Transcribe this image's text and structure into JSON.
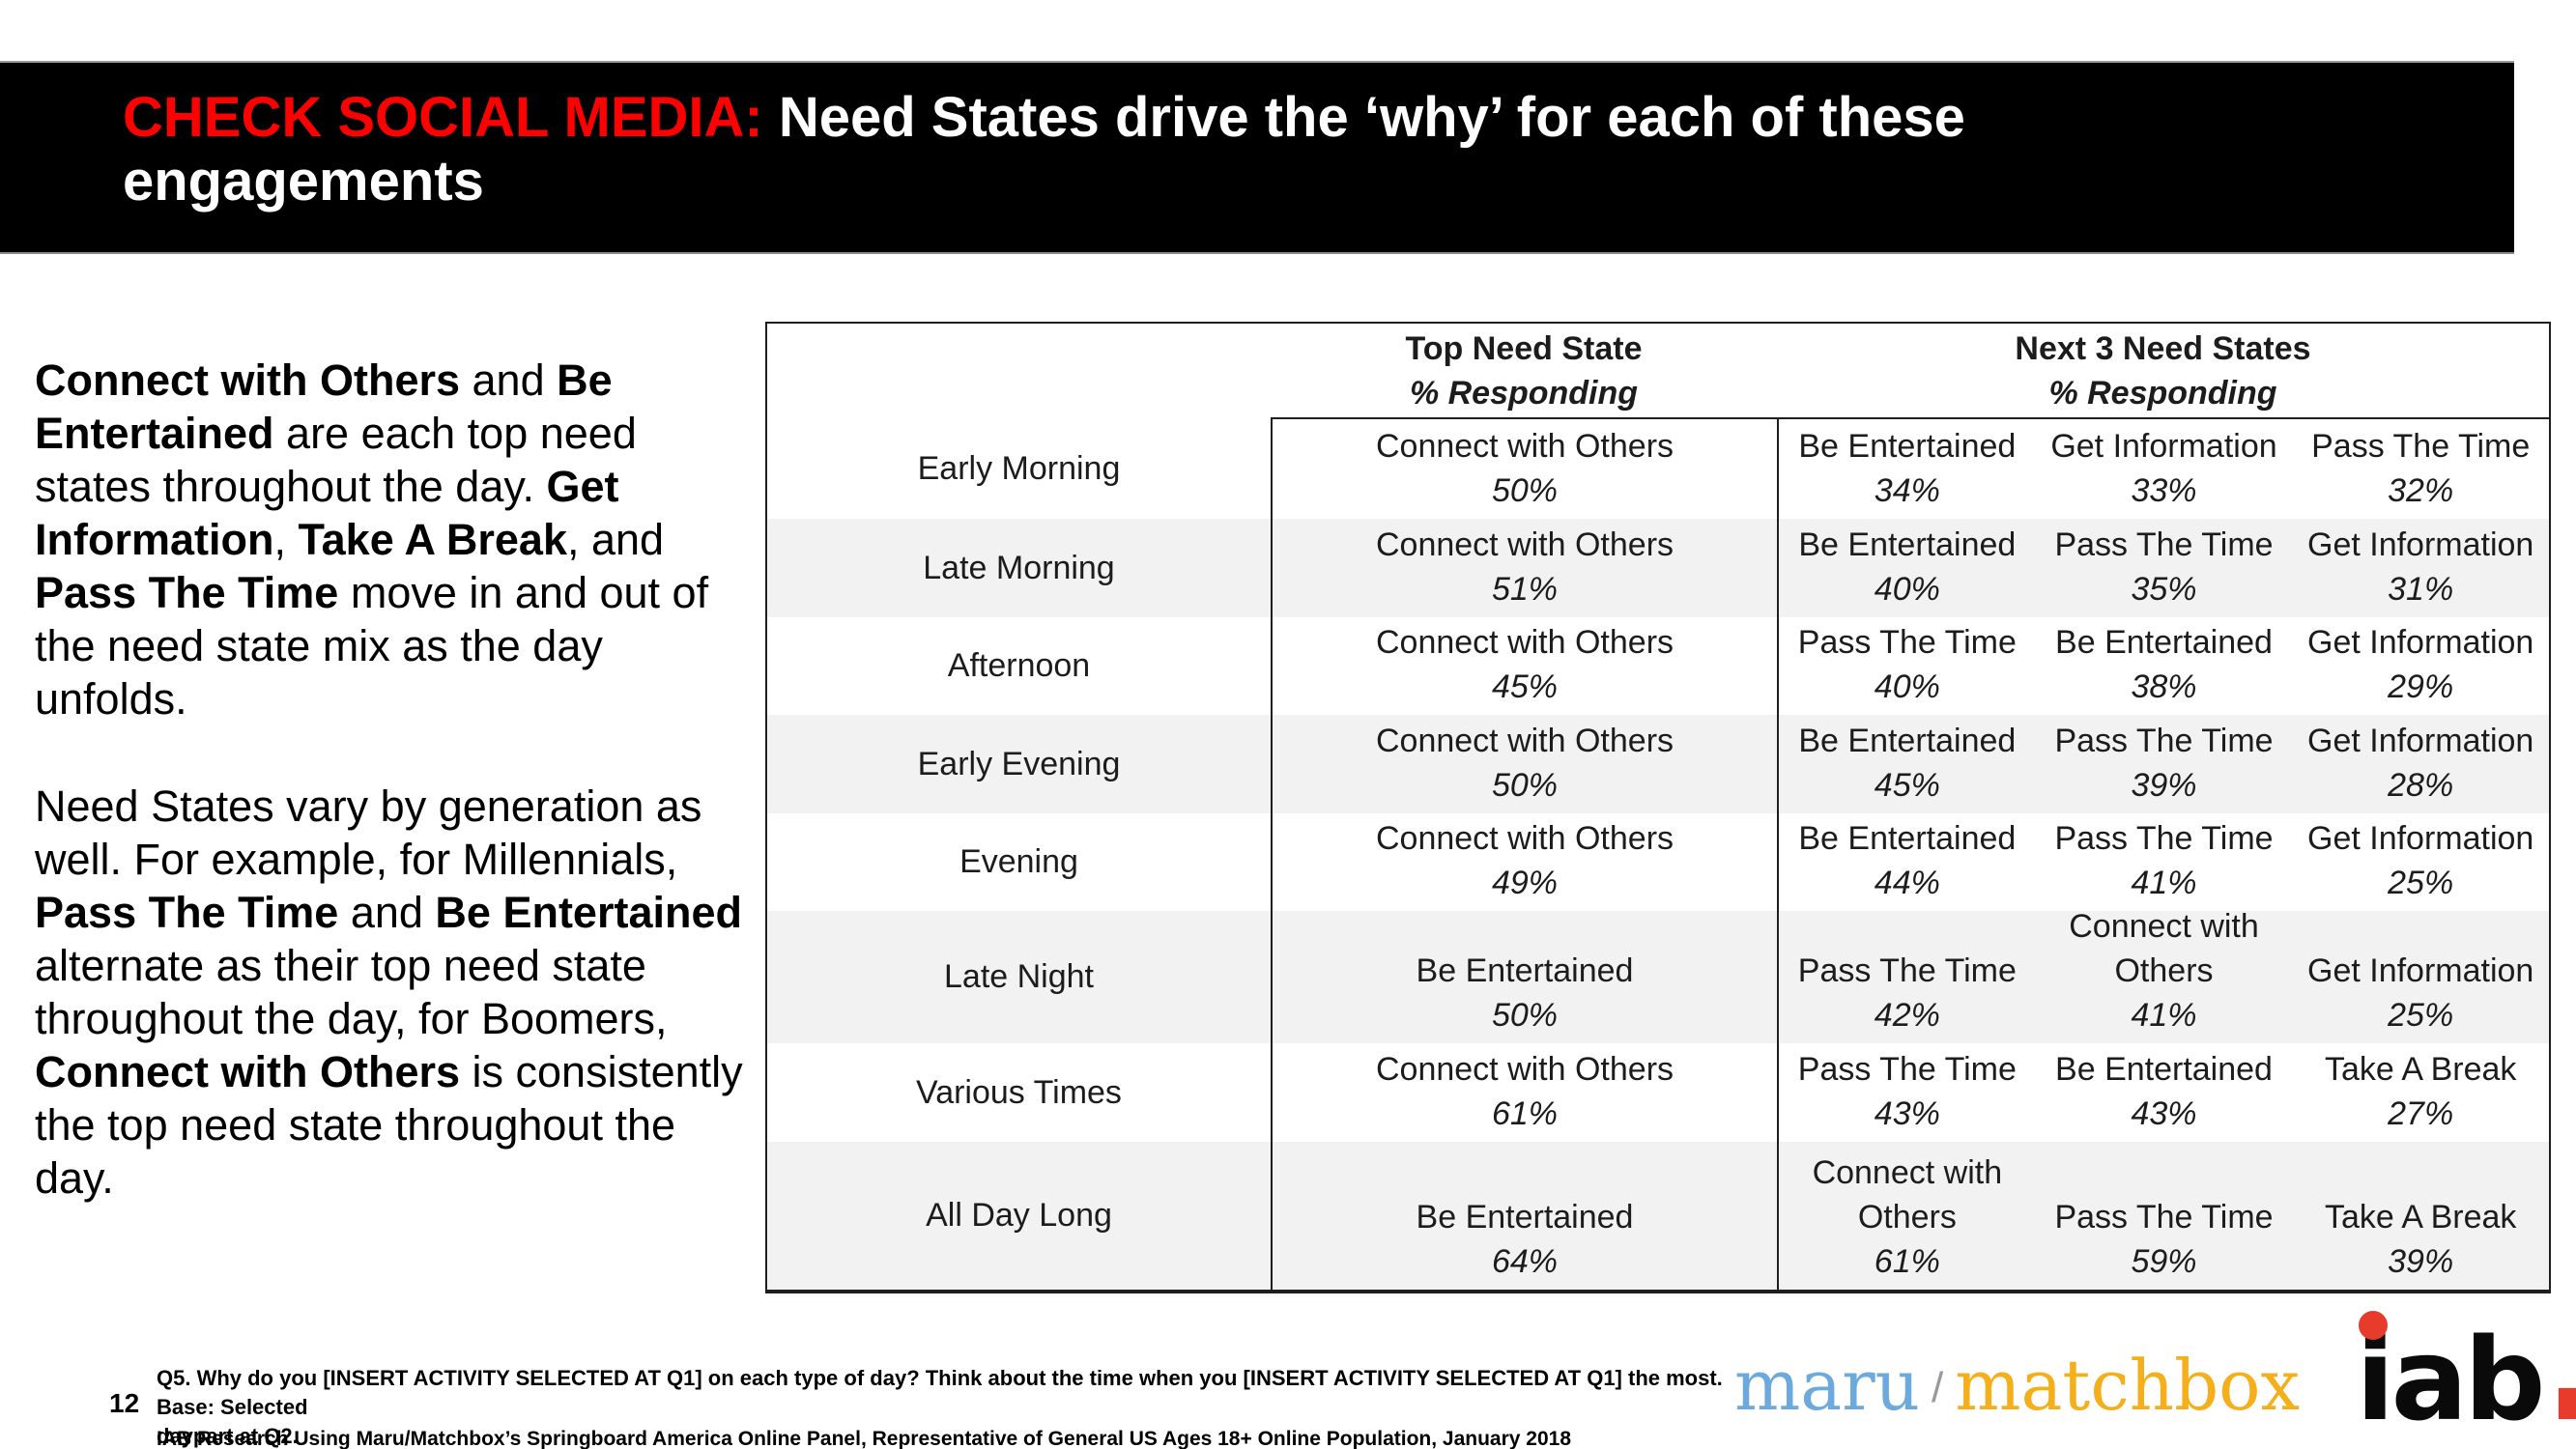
{
  "header": {
    "title_red": "CHECK SOCIAL MEDIA:",
    "title_rest": " Need States drive the ‘why’ for each of these",
    "title_line2": "engagements"
  },
  "left_text": {
    "paragraphs": [
      {
        "segments": [
          {
            "t": "Connect with Others",
            "b": true
          },
          {
            "t": " and ",
            "b": false
          },
          {
            "t": "Be Entertained",
            "b": true
          },
          {
            "t": " are each top need states throughout the day. ",
            "b": false
          },
          {
            "t": "Get Information",
            "b": true
          },
          {
            "t": ", ",
            "b": false
          },
          {
            "t": "Take A Break",
            "b": true
          },
          {
            "t": ", and ",
            "b": false
          },
          {
            "t": "Pass The Time",
            "b": true
          },
          {
            "t": " move in and out of the need state mix as the day unfolds.",
            "b": false
          }
        ]
      },
      {
        "segments": [
          {
            "t": "Need States vary by generation as well. For example, for Millennials, ",
            "b": false
          },
          {
            "t": "Pass The Time",
            "b": true
          },
          {
            "t": " and ",
            "b": false
          },
          {
            "t": "Be Entertained",
            "b": true
          },
          {
            "t": " alternate as their top need state throughout the day, for Boomers, ",
            "b": false
          },
          {
            "t": "Connect with Others",
            "b": true
          },
          {
            "t": " is consistently the top need state throughout the day.",
            "b": false
          }
        ]
      }
    ]
  },
  "table": {
    "headers": {
      "top": {
        "title": "Top Need State",
        "sub": "% Responding"
      },
      "next": {
        "title": "Next 3 Need States",
        "sub": "% Responding"
      }
    },
    "rows": [
      {
        "daypart": "Early Morning",
        "top": {
          "label": "Connect with Others",
          "pct": "50%"
        },
        "next": [
          {
            "label": "Be Entertained",
            "pct": "34%"
          },
          {
            "label": "Get Information",
            "pct": "33%"
          },
          {
            "label": "Pass The Time",
            "pct": "32%"
          }
        ]
      },
      {
        "daypart": "Late Morning",
        "top": {
          "label": "Connect with Others",
          "pct": "51%"
        },
        "next": [
          {
            "label": "Be Entertained",
            "pct": "40%"
          },
          {
            "label": "Pass The Time",
            "pct": "35%"
          },
          {
            "label": "Get Information",
            "pct": "31%"
          }
        ]
      },
      {
        "daypart": "Afternoon",
        "top": {
          "label": "Connect with Others",
          "pct": "45%"
        },
        "next": [
          {
            "label": "Pass The Time",
            "pct": "40%"
          },
          {
            "label": "Be Entertained",
            "pct": "38%"
          },
          {
            "label": "Get Information",
            "pct": "29%"
          }
        ]
      },
      {
        "daypart": "Early Evening",
        "top": {
          "label": "Connect with Others",
          "pct": "50%"
        },
        "next": [
          {
            "label": "Be Entertained",
            "pct": "45%"
          },
          {
            "label": "Pass The Time",
            "pct": "39%"
          },
          {
            "label": "Get Information",
            "pct": "28%"
          }
        ]
      },
      {
        "daypart": "Evening",
        "top": {
          "label": "Connect with Others",
          "pct": "49%"
        },
        "next": [
          {
            "label": "Be Entertained",
            "pct": "44%"
          },
          {
            "label": "Pass The Time",
            "pct": "41%"
          },
          {
            "label": "Get Information",
            "pct": "25%"
          }
        ]
      },
      {
        "daypart": "Late Night",
        "top": {
          "label": "Be Entertained",
          "pct": "50%"
        },
        "next": [
          {
            "label": "Pass The Time",
            "pct": "42%"
          },
          {
            "label": "Connect with Others",
            "pct": "41%"
          },
          {
            "label": "Get Information",
            "pct": "25%"
          }
        ]
      },
      {
        "daypart": "Various Times",
        "top": {
          "label": "Connect with Others",
          "pct": "61%"
        },
        "next": [
          {
            "label": "Pass The Time",
            "pct": "43%"
          },
          {
            "label": "Be Entertained",
            "pct": "43%"
          },
          {
            "label": "Take A Break",
            "pct": "27%"
          }
        ]
      },
      {
        "daypart": "All Day Long",
        "top": {
          "label": "Be Entertained",
          "pct": "64%"
        },
        "next": [
          {
            "label": "Connect with Others",
            "pct": "61%"
          },
          {
            "label": "Pass The Time",
            "pct": "59%"
          },
          {
            "label": "Take A Break",
            "pct": "39%"
          }
        ]
      }
    ]
  },
  "footer": {
    "page_number": "12",
    "footnote_line1": "Q5. Why do you [INSERT ACTIVITY SELECTED AT Q1] on each type of day? Think about the time when you [INSERT ACTIVITY SELECTED AT Q1] the most. Base: Selected",
    "footnote_line2": "daypart at Q2.",
    "source": "IAB Research Using Maru/Matchbox’s Springboard America Online Panel, Representative of General US Ages 18+ Online Population, January 2018",
    "logos": {
      "maru": "maru",
      "slash": "/",
      "matchbox": "matchbox",
      "iab_text": "iab",
      "iab_period": "."
    }
  },
  "colors": {
    "title_accent_red": "#FF0000",
    "row_stripe": "#F2F2F2",
    "table_border": "#1F1F1F",
    "maru_blue": "#6CA9DC",
    "matchbox_yellow": "#F5AF1B",
    "iab_red": "#E73B2B"
  }
}
